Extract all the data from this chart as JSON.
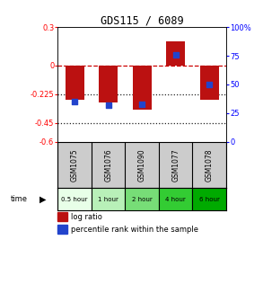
{
  "title": "GDS115 / 6089",
  "samples": [
    "GSM1075",
    "GSM1076",
    "GSM1090",
    "GSM1077",
    "GSM1078"
  ],
  "log_ratios": [
    -0.27,
    -0.29,
    -0.35,
    0.19,
    -0.27
  ],
  "percentile_ranks": [
    35,
    32,
    33,
    76,
    50
  ],
  "time_labels": [
    "0.5 hour",
    "1 hour",
    "2 hour",
    "4 hour",
    "6 hour"
  ],
  "time_colors": [
    "#e8ffe8",
    "#b8f0b8",
    "#77dd77",
    "#33cc33",
    "#00aa00"
  ],
  "bar_color": "#bb1111",
  "dot_color": "#2244cc",
  "ylim_left": [
    -0.6,
    0.3
  ],
  "ylim_right": [
    0,
    100
  ],
  "yticks_left": [
    0.3,
    0.0,
    -0.225,
    -0.45,
    -0.6
  ],
  "ytick_labels_left": [
    "0.3",
    "0",
    "-0.225",
    "-0.45",
    "-0.6"
  ],
  "yticks_right": [
    100,
    75,
    50,
    25,
    0
  ],
  "ytick_labels_right": [
    "100%",
    "75",
    "50",
    "25",
    "0"
  ],
  "hlines": [
    0.0,
    -0.225,
    -0.45
  ],
  "hline_styles": [
    "--",
    ":",
    ":"
  ],
  "hline_colors": [
    "#cc0000",
    "#222222",
    "#222222"
  ],
  "legend_log_ratio": "log ratio",
  "legend_percentile": "percentile rank within the sample",
  "background_color": "#ffffff"
}
